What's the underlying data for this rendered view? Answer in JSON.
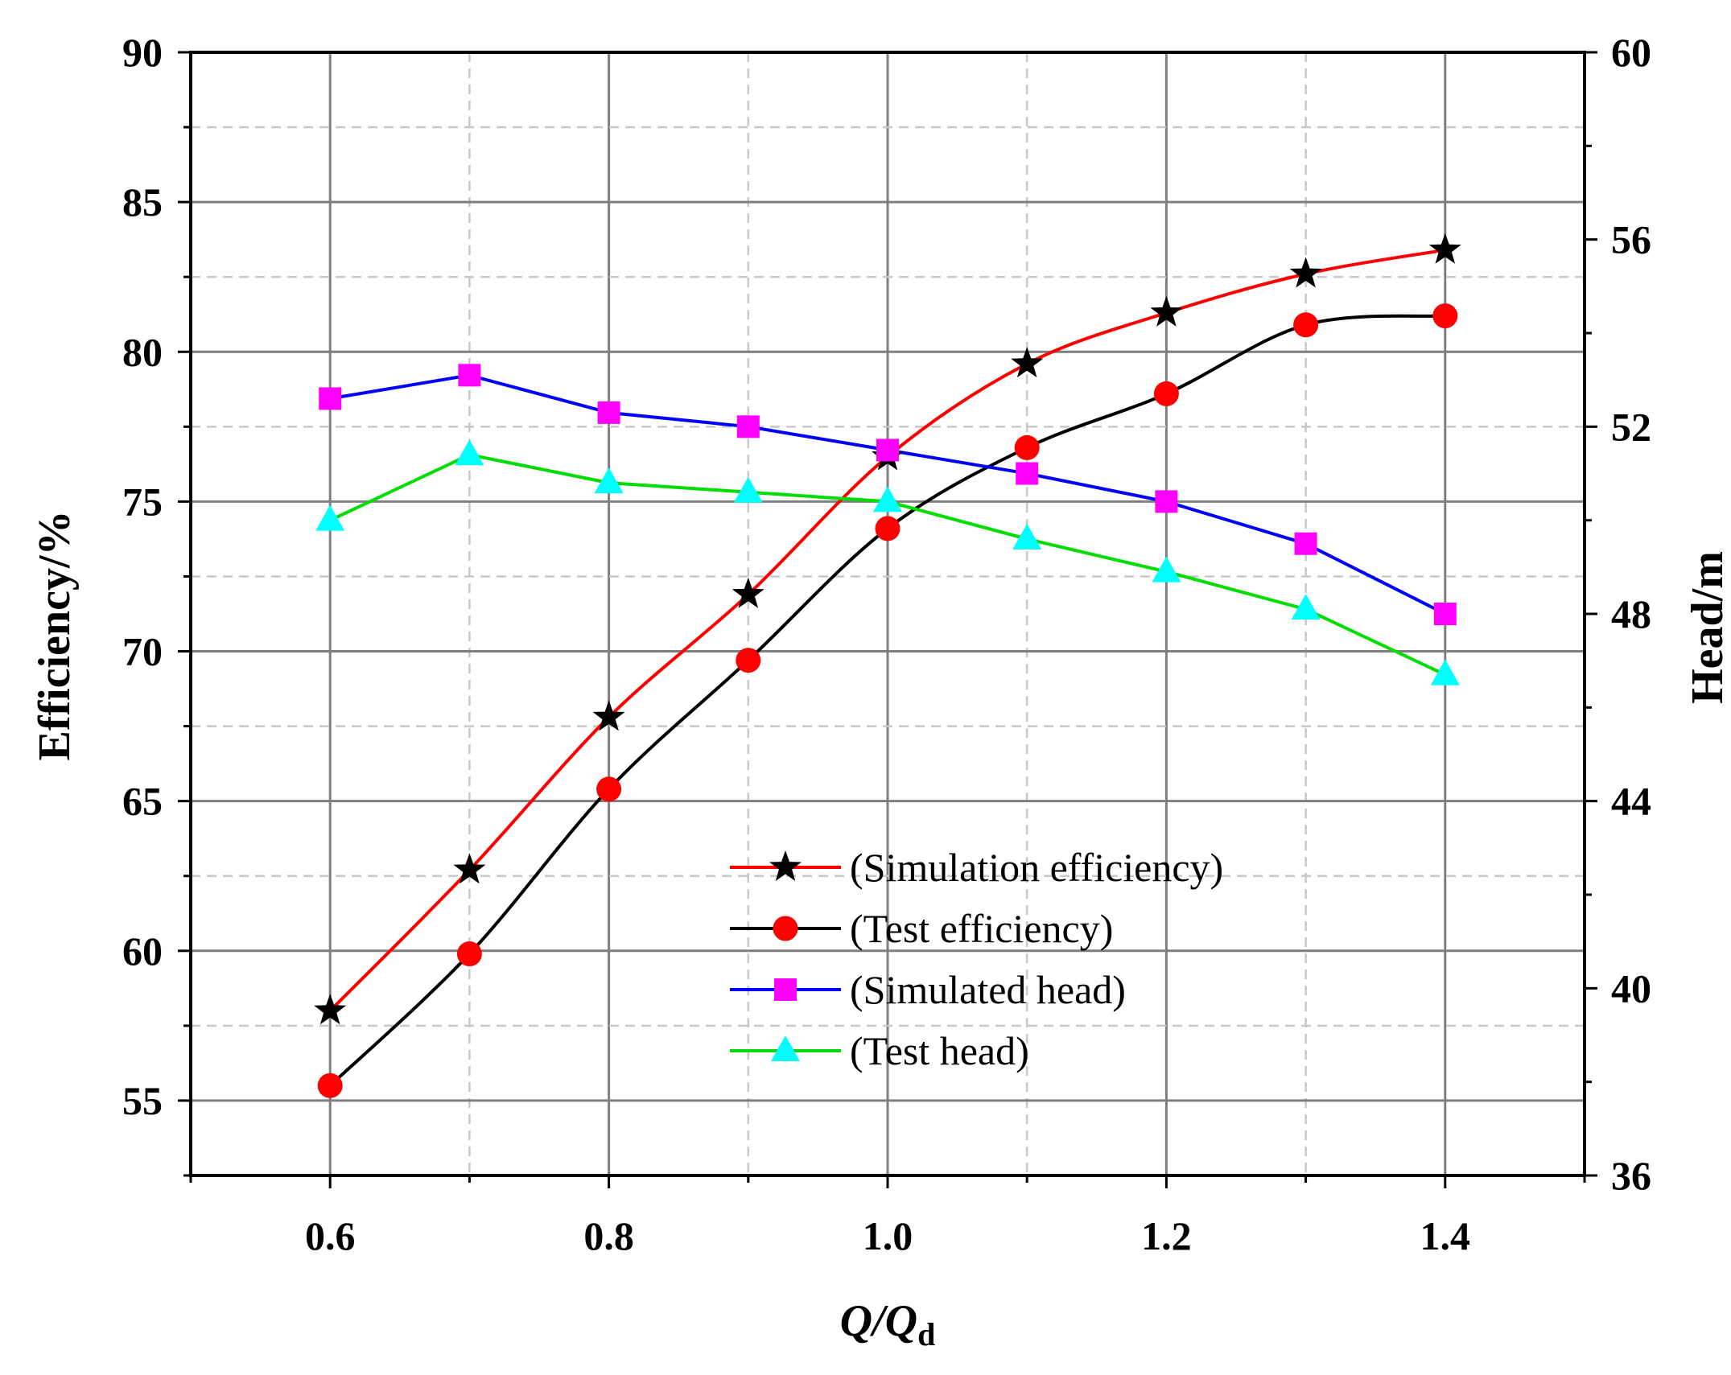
{
  "chart_data": {
    "type": "line",
    "title": "",
    "xlabel": {
      "main": "Q/Q",
      "sub": "d"
    },
    "ylabel_left": "Efficiency/%",
    "ylabel_right": "Head/m",
    "xlim": [
      0.5,
      1.5
    ],
    "ylim_left": [
      52.5,
      90
    ],
    "ylim_right": [
      36,
      60
    ],
    "x_ticks": [
      "0.6",
      "0.8",
      "1.0",
      "1.2",
      "1.4"
    ],
    "y_left_ticks": [
      "55",
      "60",
      "65",
      "70",
      "75",
      "80",
      "85",
      "90"
    ],
    "y_right_ticks": [
      "36",
      "40",
      "44",
      "48",
      "52",
      "56",
      "60"
    ],
    "grid": true,
    "legend_position": "center-right",
    "x": [
      0.6,
      0.7,
      0.8,
      0.9,
      1.0,
      1.1,
      1.2,
      1.3,
      1.4
    ],
    "series": [
      {
        "name": "(Simulation efficiency)",
        "axis": "left",
        "marker": "star",
        "line_color": "#ff0000",
        "marker_color": "#000000",
        "values": [
          58.0,
          62.7,
          67.8,
          71.9,
          76.5,
          79.6,
          81.3,
          82.6,
          83.4
        ]
      },
      {
        "name": "(Test efficiency)",
        "axis": "left",
        "marker": "circle",
        "line_color": "#000000",
        "marker_color": "#ff0000",
        "values": [
          55.5,
          59.9,
          65.4,
          69.7,
          74.1,
          76.8,
          78.6,
          80.9,
          81.2
        ]
      },
      {
        "name": "(Simulated head)",
        "axis": "right",
        "marker": "square",
        "line_color": "#0000ff",
        "marker_color": "#ff00ff",
        "values": [
          52.6,
          53.1,
          52.3,
          52.0,
          51.5,
          51.0,
          50.4,
          49.5,
          48.0
        ]
      },
      {
        "name": "(Test head)",
        "axis": "right",
        "marker": "triangle",
        "line_color": "#00dd00",
        "marker_color": "#00ffff",
        "values": [
          50.0,
          51.4,
          50.8,
          50.6,
          50.4,
          49.6,
          48.9,
          48.1,
          46.7
        ]
      }
    ]
  }
}
